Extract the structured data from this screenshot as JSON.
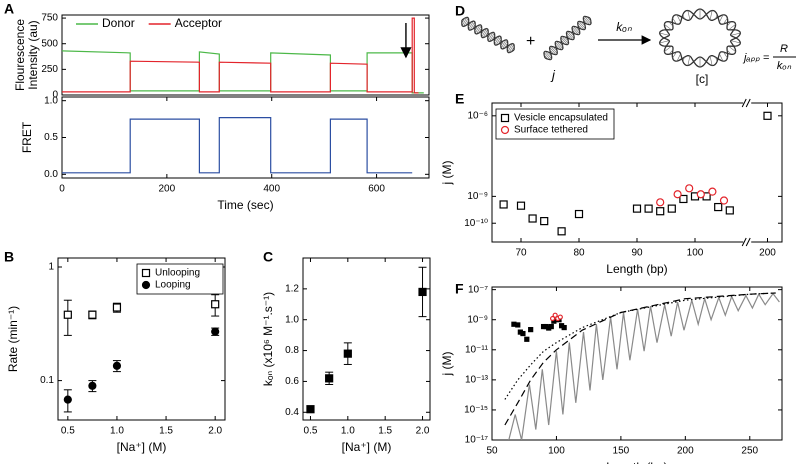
{
  "chart_data": [
    {
      "type": "line",
      "panel": "A",
      "ylabel": [
        "Flourescence",
        "Intensity (au)"
      ],
      "xlim": [
        0,
        700
      ],
      "ylim": [
        0,
        780
      ],
      "yticks": [
        0,
        250,
        500,
        750
      ],
      "legend": "top",
      "series": [
        {
          "name": "Donor",
          "color": "#4cb848",
          "x": [
            0,
            130,
            130,
            262,
            262,
            300,
            300,
            398,
            398,
            512,
            512,
            582,
            582,
            668,
            668,
            690
          ],
          "values": [
            430,
            410,
            40,
            40,
            420,
            400,
            40,
            40,
            410,
            390,
            40,
            40,
            410,
            410,
            20,
            20
          ]
        },
        {
          "name": "Acceptor",
          "color": "#e3242b",
          "x": [
            0,
            130,
            130,
            262,
            262,
            300,
            300,
            398,
            398,
            512,
            512,
            582,
            582,
            668,
            668,
            672,
            672,
            680
          ],
          "values": [
            30,
            30,
            330,
            320,
            30,
            30,
            320,
            310,
            30,
            30,
            310,
            300,
            30,
            30,
            750,
            750,
            20,
            20
          ]
        }
      ]
    },
    {
      "type": "line",
      "ylabel": "FRET",
      "xlabel": "Time (sec)",
      "xlim": [
        0,
        700
      ],
      "ylim": [
        -0.05,
        1.05
      ],
      "xticks": [
        0,
        200,
        400,
        600
      ],
      "yticks": [
        {
          "value": 0,
          "label": "0.0"
        },
        0.5,
        {
          "value": 1,
          "label": "1.0"
        }
      ],
      "series": [
        {
          "name": "FRET",
          "color": "#2b4ea2",
          "x": [
            0,
            130,
            130,
            262,
            262,
            300,
            300,
            398,
            398,
            512,
            512,
            582,
            582,
            668
          ],
          "values": [
            0.02,
            0.02,
            0.75,
            0.75,
            0.02,
            0.02,
            0.77,
            0.77,
            0.02,
            0.02,
            0.75,
            0.75,
            0.02,
            0.02
          ]
        }
      ]
    },
    {
      "type": "scatter",
      "panel": "B",
      "ylabel": "Rate (min⁻¹)",
      "xlabel": "[Na⁺] (M)",
      "ylog": true,
      "xlim": [
        0.4,
        2.1
      ],
      "ylim": [
        0.045,
        1.2
      ],
      "xticks": [
        0.5,
        {
          "value": 1,
          "label": "1.0"
        },
        1.5,
        {
          "value": 2,
          "label": "2.0"
        }
      ],
      "yticks": [
        0.1,
        1
      ],
      "legend": "upper right",
      "series": [
        {
          "name": "Unlooping",
          "color": "#000000",
          "marker": "square",
          "filled": false,
          "x": [
            0.5,
            0.75,
            1.0,
            2.0
          ],
          "values": [
            0.38,
            0.38,
            0.44,
            0.47
          ],
          "errors": [
            0.13,
            0.03,
            0.04,
            0.1
          ]
        },
        {
          "name": "Looping",
          "color": "#000000",
          "marker": "circle",
          "filled": true,
          "x": [
            0.5,
            0.75,
            1.0,
            2.0
          ],
          "values": [
            0.068,
            0.09,
            0.135,
            0.27
          ],
          "errors": [
            0.015,
            0.01,
            0.015,
            0.02
          ]
        }
      ]
    },
    {
      "type": "scatter",
      "panel": "C",
      "ylabel": "kₒₙ (x10⁶ M⁻¹.s⁻¹)",
      "xlabel": "[Na⁺] (M)",
      "xlim": [
        0.4,
        2.1
      ],
      "ylim": [
        0.35,
        1.4
      ],
      "xticks": [
        0.5,
        {
          "value": 1,
          "label": "1.0"
        },
        1.5,
        {
          "value": 2,
          "label": "2.0"
        }
      ],
      "yticks": [
        0.4,
        0.6,
        0.8,
        {
          "value": 1,
          "label": "1.0"
        },
        1.2
      ],
      "series": [
        {
          "name": "kon",
          "color": "#000000",
          "marker": "square",
          "filled": true,
          "x": [
            0.5,
            0.75,
            1.0,
            2.0
          ],
          "values": [
            0.42,
            0.62,
            0.78,
            1.18
          ],
          "errors": [
            0.02,
            0.04,
            0.07,
            0.16
          ]
        }
      ]
    },
    {
      "type": "scatter",
      "panel": "E",
      "ylabel": "j (M)",
      "xlabel": "Length (bp)",
      "ylog": true,
      "xlim": [
        65,
        205
      ],
      "xbreak": [
        108,
        195
      ],
      "ylim": [
        2e-11,
        3e-06
      ],
      "xticks": [
        70,
        80,
        90,
        100,
        200
      ],
      "yticks": [
        {
          "value": 1e-10,
          "label": "10⁻¹⁰"
        },
        {
          "value": 1e-09,
          "label": "10⁻⁹"
        },
        {
          "value": 1e-06,
          "label": "10⁻⁶"
        }
      ],
      "legend": "upper left",
      "series": [
        {
          "name": "Vesicle encapsulated",
          "color": "#000000",
          "marker": "square",
          "filled": false,
          "x": [
            67,
            70,
            72,
            74,
            77,
            80,
            90,
            92,
            94,
            96,
            98,
            100,
            102,
            104,
            106,
            200
          ],
          "values": [
            5e-10,
            4.5e-10,
            1.5e-10,
            1.2e-10,
            5e-11,
            2.2e-10,
            3.5e-10,
            3.5e-10,
            2.8e-10,
            3.5e-10,
            8e-10,
            1e-09,
            1e-09,
            4e-10,
            3e-10,
            1e-06
          ]
        },
        {
          "name": "Surface tethered",
          "color": "#e3242b",
          "marker": "circle",
          "filled": false,
          "x": [
            94,
            97,
            99,
            101,
            103,
            105
          ],
          "values": [
            6e-10,
            1.2e-09,
            2e-09,
            1.2e-09,
            1.5e-09,
            7e-10
          ]
        }
      ]
    },
    {
      "type": "mixed",
      "panel": "F",
      "ylabel": "j (M)",
      "xlabel": "Length (bp)",
      "ylog": true,
      "xlim": [
        50,
        275
      ],
      "ylim": [
        1e-17,
        1.5e-07
      ],
      "xticks": [
        50,
        100,
        150,
        200,
        250
      ],
      "yticks": [
        {
          "value": 1e-17,
          "label": "10⁻¹⁷"
        },
        {
          "value": 1e-15,
          "label": "10⁻¹⁵"
        },
        {
          "value": 1e-13,
          "label": "10⁻¹³"
        },
        {
          "value": 1e-11,
          "label": "10⁻¹¹"
        },
        {
          "value": 1e-09,
          "label": "10⁻⁹"
        },
        {
          "value": 1e-07,
          "label": "10⁻⁷"
        }
      ],
      "series": [
        {
          "kind": "line",
          "style": "solid",
          "color": "#8a8a8a",
          "x": [
            63,
            68,
            73,
            79,
            84,
            89,
            94,
            100,
            105,
            110,
            115,
            121,
            126,
            131,
            136,
            142,
            147,
            152,
            157,
            163,
            168,
            173,
            178,
            184,
            189,
            194,
            199,
            205,
            210,
            215,
            220,
            226,
            231,
            236,
            241,
            247,
            252,
            257,
            262,
            268,
            273
          ],
          "values": [
            1e-17,
            5e-16,
            1e-17,
            5e-14,
            5e-17,
            5e-13,
            1e-16,
            8e-12,
            5e-16,
            3e-11,
            3e-15,
            1.5e-10,
            2e-14,
            5e-10,
            1e-13,
            1.5e-09,
            5e-13,
            3e-09,
            2e-12,
            5e-09,
            8e-12,
            8e-09,
            3e-11,
            1e-08,
            8e-11,
            1.5e-08,
            2e-10,
            2e-08,
            5e-10,
            2.5e-08,
            1e-09,
            3e-08,
            2e-09,
            3.5e-08,
            4e-09,
            4e-08,
            6e-09,
            5e-08,
            1e-08,
            5.5e-08,
            1.5e-08
          ]
        },
        {
          "kind": "line",
          "style": "dashed",
          "color": "#000000",
          "x": [
            60,
            70,
            80,
            90,
            100,
            120,
            150,
            200,
            250,
            270
          ],
          "values": [
            1e-16,
            3e-15,
            1e-13,
            1.5e-12,
            1e-11,
            2e-10,
            3e-09,
            2.5e-08,
            5e-08,
            6e-08
          ]
        },
        {
          "kind": "line",
          "style": "dotted",
          "color": "#000000",
          "x": [
            60,
            70,
            80,
            90,
            100,
            120,
            150,
            200,
            250,
            270
          ],
          "values": [
            5e-15,
            1e-13,
            1e-12,
            8e-12,
            3e-11,
            3e-10,
            3e-09,
            2e-08,
            5e-08,
            6e-08
          ]
        },
        {
          "kind": "scatter",
          "color": "#000000",
          "marker": "square",
          "filled": true,
          "size": 4,
          "x": [
            67,
            70,
            72,
            74,
            77,
            80,
            90,
            92,
            94,
            96,
            98,
            102,
            104,
            106
          ],
          "values": [
            5e-10,
            4.5e-10,
            1.5e-10,
            1.2e-10,
            5e-11,
            2.2e-10,
            3.5e-10,
            3.5e-10,
            2.8e-10,
            3.5e-10,
            8e-10,
            1e-09,
            4e-10,
            3e-10
          ]
        },
        {
          "kind": "scatter",
          "color": "#e3242b",
          "marker": "circle",
          "filled": false,
          "size": 4,
          "x": [
            97,
            99,
            101,
            103
          ],
          "values": [
            1.2e-09,
            2e-09,
            1.2e-09,
            1.5e-09
          ]
        }
      ]
    }
  ],
  "diagram": {
    "panel": "D",
    "j": "j",
    "rate": "kₒₙ",
    "loop": "[c]",
    "equation": {
      "lhs": "jₐₚₚ =",
      "num": "R",
      "den": "kₒₙ"
    }
  }
}
